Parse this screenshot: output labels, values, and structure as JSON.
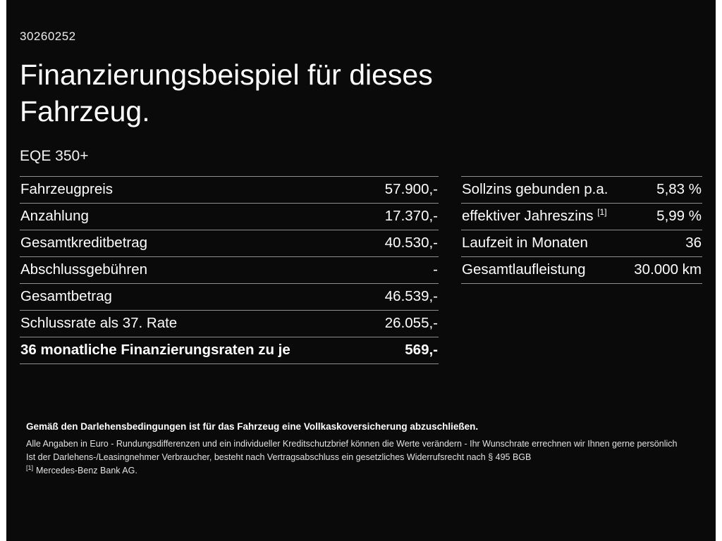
{
  "page": {
    "doc_number": "30260252",
    "title_line1": "Finanzierungsbeispiel für dieses",
    "title_line2": "Fahrzeug.",
    "model": "EQE 350+",
    "background_color": "#0a0a0a",
    "text_color": "#ffffff",
    "divider_color": "#8e8e8e"
  },
  "left_table": {
    "rows": [
      {
        "label": "Fahrzeugpreis",
        "value": "57.900,-"
      },
      {
        "label": "Anzahlung",
        "value": "17.370,-"
      },
      {
        "label": "Gesamtkreditbetrag",
        "value": "40.530,-"
      },
      {
        "label": "Abschlussgebühren",
        "value": "-"
      },
      {
        "label": "Gesamtbetrag",
        "value": "46.539,-"
      },
      {
        "label": "Schlussrate als 37. Rate",
        "value": "26.055,-"
      },
      {
        "label": "36 monatliche Finanzierungsraten zu je",
        "value": "569,-"
      }
    ]
  },
  "right_table": {
    "rows": [
      {
        "label": "Sollzins gebunden p.a.",
        "sup": "",
        "value": "5,83 %"
      },
      {
        "label": "effektiver Jahreszins",
        "sup": "[1]",
        "value": "5,99 %"
      },
      {
        "label": "Laufzeit in Monaten",
        "sup": "",
        "value": "36"
      },
      {
        "label": "Gesamtlaufleistung",
        "sup": "",
        "value": "30.000 km"
      }
    ]
  },
  "footnotes": {
    "bold_line": "Gemäß den Darlehensbedingungen ist für das Fahrzeug eine Vollkaskoversicherung abzuschließen.",
    "line2": "Alle Angaben in Euro - Rundungsdifferenzen und ein individueller Kreditschutzbrief können die Werte verändern - Ihr Wunschrate errechnen wir Ihnen gerne persönlich",
    "line3": "Ist der Darlehens-/Leasingnehmer Verbraucher, besteht nach Vertragsabschluss ein gesetzliches Widerrufsrecht nach § 495 BGB",
    "line4_marker": "[1]",
    "line4_text": "Mercedes-Benz Bank AG."
  }
}
